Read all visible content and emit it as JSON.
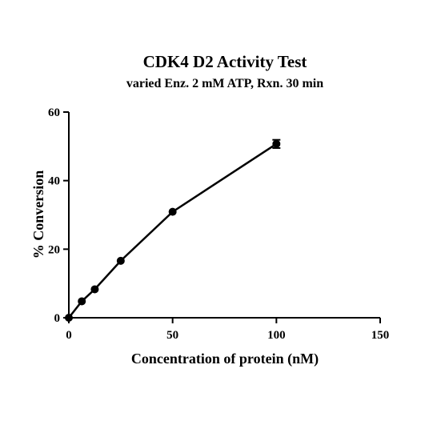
{
  "chart_data": {
    "type": "scatter",
    "title": "CDK4 D2 Activity Test",
    "subtitle": "varied Enz. 2 mM ATP, Rxn. 30 min",
    "xlabel": "Concentration of protein (nM)",
    "ylabel": "% Conversion",
    "xlim": [
      0,
      150
    ],
    "ylim": [
      0,
      60
    ],
    "xticks": [
      0,
      50,
      100,
      150
    ],
    "yticks": [
      0,
      20,
      40,
      60
    ],
    "grid": false,
    "series": [
      {
        "x": [
          0,
          6.25,
          12.5,
          25,
          50,
          100
        ],
        "y": [
          0,
          4.8,
          8.3,
          16.6,
          30.9,
          50.7
        ],
        "error": [
          0,
          0,
          0,
          0,
          0,
          1.2
        ],
        "color": "#000000",
        "marker": "circle",
        "connected": true
      }
    ]
  }
}
